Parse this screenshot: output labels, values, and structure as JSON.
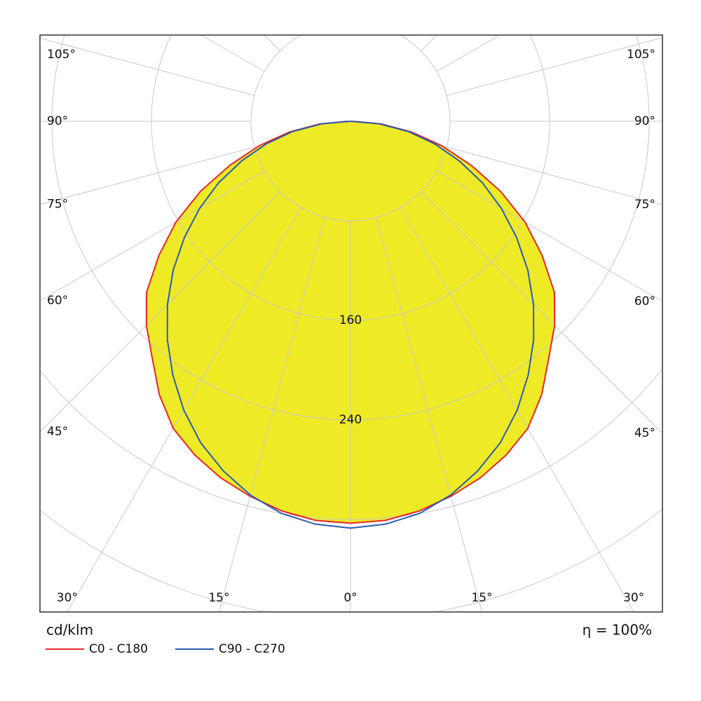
{
  "chart_data": {
    "type": "polar",
    "unit_label": "cd/klm",
    "efficiency_label": "η = 100%",
    "angles": [
      -90,
      -85,
      -80,
      -75,
      -70,
      -65,
      -60,
      -55,
      -50,
      -45,
      -40,
      -35,
      -30,
      -25,
      -20,
      -15,
      -10,
      -5,
      0,
      5,
      10,
      15,
      20,
      25,
      30,
      35,
      40,
      45,
      50,
      55,
      60,
      65,
      70,
      75,
      80,
      85,
      90
    ],
    "series": [
      {
        "name": "C0 - C180",
        "color": "#e8262a",
        "fill": "#eeea26",
        "values": [
          2,
          25,
          50,
          76,
          103,
          133,
          162,
          188,
          214,
          232,
          248,
          268,
          285,
          296,
          305,
          312,
          318,
          322,
          323,
          322,
          318,
          312,
          305,
          296,
          285,
          268,
          248,
          232,
          214,
          188,
          162,
          133,
          103,
          76,
          50,
          25,
          2
        ]
      },
      {
        "name": "C90 - C270",
        "color": "#2a5cb0",
        "values": [
          0,
          23,
          47,
          70,
          93,
          117,
          140,
          163,
          186,
          208,
          229,
          249,
          268,
          285,
          299,
          311,
          320,
          325,
          327,
          325,
          320,
          311,
          299,
          285,
          268,
          249,
          229,
          208,
          186,
          163,
          140,
          117,
          93,
          70,
          47,
          23,
          0
        ]
      }
    ],
    "rlim": [
      0,
      400
    ],
    "rgrid": [
      80,
      160,
      240,
      320,
      400,
      480
    ],
    "rlabels": [
      160,
      240
    ],
    "angle_grid": [
      -165,
      -150,
      -135,
      -120,
      -105,
      -90,
      -75,
      -60,
      -45,
      -30,
      -15,
      0,
      15,
      30,
      45,
      60,
      75,
      90,
      105,
      120,
      135,
      150,
      165,
      180
    ],
    "angle_ticks": [
      {
        "value": -105,
        "label": "105°"
      },
      {
        "value": -90,
        "label": "90°"
      },
      {
        "value": -75,
        "label": "75°"
      },
      {
        "value": -60,
        "label": "60°"
      },
      {
        "value": -45,
        "label": "45°"
      },
      {
        "value": -30,
        "label": "30°"
      },
      {
        "value": -15,
        "label": "15°"
      },
      {
        "value": 0,
        "label": "0°"
      },
      {
        "value": 15,
        "label": "15°"
      },
      {
        "value": 30,
        "label": "30°"
      },
      {
        "value": 45,
        "label": "45°"
      },
      {
        "value": 60,
        "label": "60°"
      },
      {
        "value": 75,
        "label": "75°"
      },
      {
        "value": 90,
        "label": "90°"
      },
      {
        "value": 105,
        "label": "105°"
      }
    ]
  }
}
